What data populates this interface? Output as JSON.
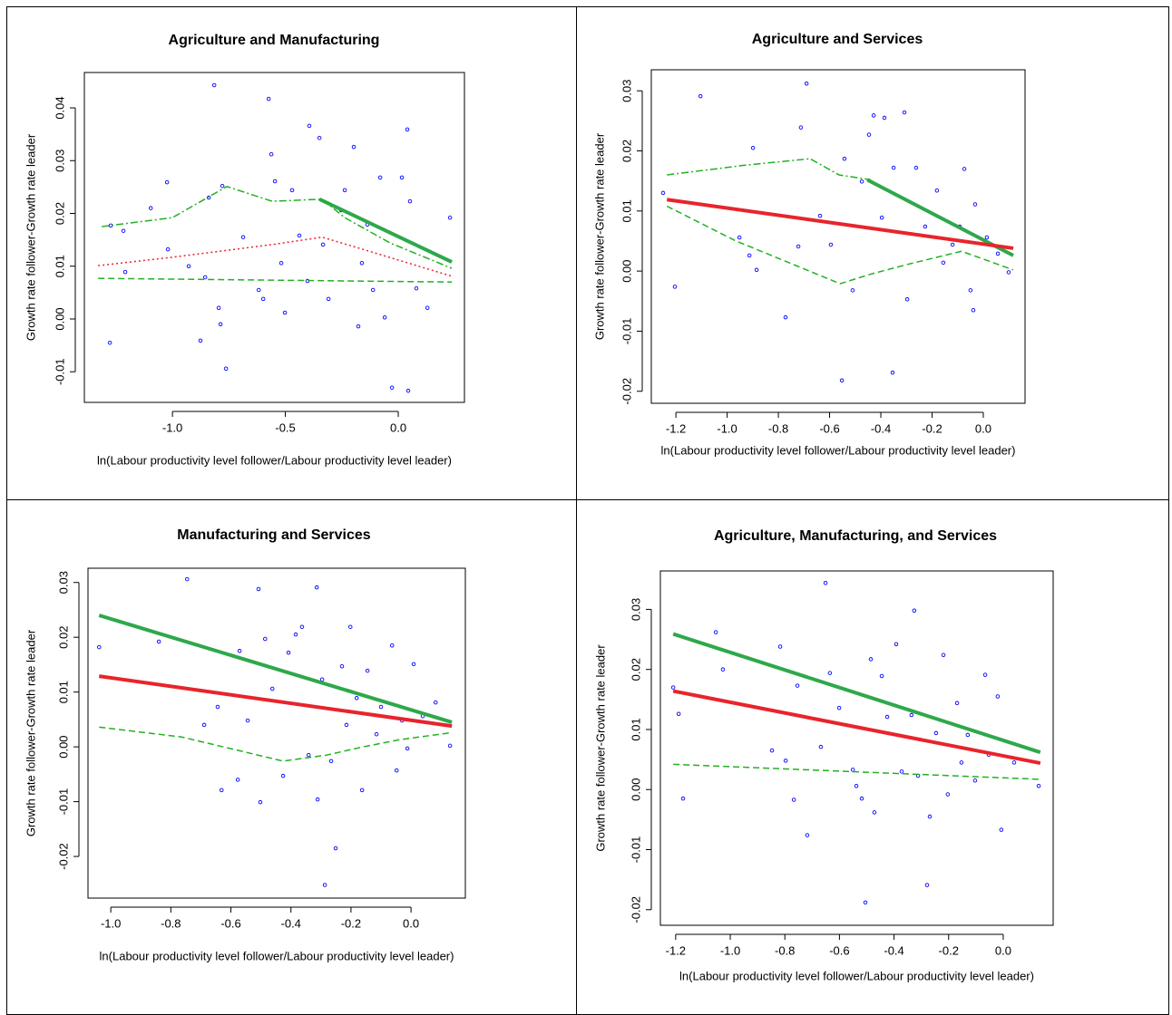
{
  "chart_data": [
    {
      "type": "scatter",
      "title": "Agriculture and Manufacturing",
      "x_label": "ln(Labour productivity level follower/Labour productivity level leader)",
      "y_label": "Growth rate follower-Growth rate leader",
      "xlim": [
        -1.39,
        0.293
      ],
      "ylim": [
        -0.0158,
        0.0467
      ],
      "xticks": [
        {
          "value": -1.0,
          "label": "-1.0"
        },
        -0.5,
        {
          "value": 0.0,
          "label": "0.0"
        }
      ],
      "yticks": [
        -0.01,
        {
          "value": 0.0,
          "label": "0.00"
        },
        0.01,
        0.02,
        0.03,
        0.04
      ],
      "series": [
        {
          "color": "#0000ff",
          "style": "points",
          "x": [
            -1.277,
            -1.273,
            -1.217,
            -1.209,
            -1.024,
            -1.096,
            -1.02,
            -0.928,
            -0.876,
            -0.855,
            -0.839,
            -0.815,
            -0.779,
            -0.795,
            -0.787,
            -0.763,
            -0.687,
            -0.618,
            -0.598,
            -0.574,
            -0.562,
            -0.546,
            -0.518,
            -0.502,
            -0.47,
            -0.438,
            -0.402,
            -0.394,
            -0.349,
            -0.333,
            -0.309,
            -0.253,
            -0.237,
            -0.197,
            -0.177,
            -0.161,
            -0.137,
            -0.112,
            -0.08,
            -0.06,
            -0.028,
            0.016,
            0.04,
            0.044,
            0.052,
            0.08,
            0.129,
            0.229
          ],
          "values": [
            -0.0045,
            0.0177,
            0.0167,
            0.0089,
            0.0259,
            0.021,
            0.0132,
            0.01,
            -0.0041,
            0.0079,
            0.023,
            0.0443,
            0.0252,
            0.0021,
            -0.001,
            -0.0094,
            0.0155,
            0.0055,
            0.0038,
            0.0417,
            0.0312,
            0.0261,
            0.0106,
            0.0012,
            0.0244,
            0.0158,
            0.0072,
            0.0366,
            0.0343,
            0.0141,
            0.0038,
            0.0206,
            0.0244,
            0.0326,
            -0.0014,
            0.0106,
            0.0179,
            0.0055,
            0.0268,
            0.0003,
            -0.013,
            0.0268,
            0.0359,
            -0.0136,
            0.0223,
            0.0058,
            0.0021,
            0.0192
          ]
        },
        {
          "color": "#2ea84b",
          "style": "solid",
          "width": 4,
          "x": [
            -0.349,
            0.237
          ],
          "values": [
            0.0227,
            0.0108
          ]
        },
        {
          "color": "#22b022",
          "style": "dotdash",
          "width": 1.5,
          "x": [
            -1.313,
            -1.0,
            -0.759,
            -0.558,
            -0.337,
            -0.237,
            -0.036,
            0.237
          ],
          "values": [
            0.0175,
            0.0192,
            0.0251,
            0.0223,
            0.0227,
            0.0192,
            0.0144,
            0.0096
          ]
        },
        {
          "color": "#e8242b",
          "style": "dotted",
          "width": 1.5,
          "x": [
            -1.329,
            -1.0,
            -0.558,
            -0.337,
            -0.157,
            0.044,
            0.237
          ],
          "values": [
            0.0101,
            0.0117,
            0.0141,
            0.0155,
            0.0132,
            0.0106,
            0.0081
          ]
        },
        {
          "color": "#22b022",
          "style": "dashed",
          "width": 1.5,
          "x": [
            -1.329,
            0.237
          ],
          "values": [
            0.0077,
            0.007
          ]
        }
      ]
    },
    {
      "type": "scatter",
      "title": "Agriculture and Services",
      "x_label": "ln(Labour productivity level follower/Labour productivity level leader)",
      "y_label": "Growth rate follower-Growth rate leader",
      "xlim": [
        -1.296,
        0.163
      ],
      "ylim": [
        -0.022,
        0.0335
      ],
      "xticks": [
        -1.2,
        {
          "value": -1.0,
          "label": "-1.0"
        },
        -0.8,
        -0.6,
        -0.4,
        -0.2,
        {
          "value": 0.0,
          "label": "0.0"
        }
      ],
      "yticks": [
        -0.02,
        -0.01,
        {
          "value": 0.0,
          "label": "0.00"
        },
        0.01,
        0.02,
        0.03
      ],
      "series": [
        {
          "color": "#0000ff",
          "style": "points",
          "x": [
            -1.25,
            -1.204,
            -1.104,
            -0.899,
            -0.952,
            -0.913,
            -0.885,
            -0.772,
            -0.722,
            -0.69,
            -0.712,
            -0.637,
            -0.595,
            -0.552,
            -0.542,
            -0.51,
            -0.474,
            -0.446,
            -0.428,
            -0.386,
            -0.396,
            -0.354,
            -0.35,
            -0.308,
            -0.297,
            -0.262,
            -0.227,
            -0.181,
            -0.156,
            -0.12,
            -0.092,
            -0.074,
            -0.05,
            -0.039,
            -0.032,
            0.014,
            0.057,
            0.099
          ],
          "values": [
            0.013,
            -0.0026,
            0.0291,
            0.0205,
            0.0056,
            0.0026,
            0.0002,
            -0.0077,
            0.0041,
            0.0312,
            0.0239,
            0.0092,
            0.0044,
            -0.0182,
            0.0187,
            -0.0032,
            0.0149,
            0.0227,
            0.0259,
            0.0255,
            0.0089,
            -0.0169,
            0.0172,
            0.0264,
            -0.0047,
            0.0172,
            0.0074,
            0.0134,
            0.0014,
            0.0044,
            0.0074,
            0.017,
            -0.0032,
            -0.0065,
            0.0111,
            0.0056,
            0.0029,
            -0.0002
          ]
        },
        {
          "color": "#2ea84b",
          "style": "solid",
          "width": 4,
          "x": [
            -0.453,
            0.117
          ],
          "values": [
            0.0152,
            0.0026
          ]
        },
        {
          "color": "#e8242b",
          "style": "solid",
          "width": 4,
          "x": [
            -1.235,
            0.117
          ],
          "values": [
            0.0119,
            0.0038
          ]
        },
        {
          "color": "#22b022",
          "style": "dotdash",
          "width": 1.5,
          "x": [
            -1.235,
            -0.935,
            -0.676,
            -0.563,
            -0.439
          ],
          "values": [
            0.016,
            0.0176,
            0.0187,
            0.016,
            0.0152
          ]
        },
        {
          "color": "#22b022",
          "style": "dashed",
          "width": 1.5,
          "x": [
            -1.235,
            -0.97,
            -0.559,
            -0.439,
            -0.297,
            -0.085,
            0.117
          ],
          "values": [
            0.0108,
            0.0051,
            -0.0021,
            -0.0005,
            0.0011,
            0.0033,
            0.0002
          ]
        }
      ]
    },
    {
      "type": "scatter",
      "title": "Manufacturing and Services",
      "x_label": "ln(Labour productivity level follower/Labour productivity level leader)",
      "y_label": "Growth rate follower-Growth rate leader",
      "xlim": [
        -1.076,
        0.181
      ],
      "ylim": [
        -0.0276,
        0.0326
      ],
      "xticks": [
        {
          "value": -1.0,
          "label": "-1.0"
        },
        -0.8,
        -0.6,
        -0.4,
        -0.2,
        {
          "value": 0.0,
          "label": "0.0"
        }
      ],
      "yticks": [
        -0.02,
        -0.01,
        {
          "value": 0.0,
          "label": "0.00"
        },
        0.01,
        0.02,
        0.03
      ],
      "series": [
        {
          "color": "#0000ff",
          "style": "points",
          "x": [
            -1.039,
            -0.746,
            -0.84,
            -0.689,
            -0.644,
            -0.631,
            -0.577,
            -0.571,
            -0.544,
            -0.508,
            -0.502,
            -0.486,
            -0.462,
            -0.426,
            -0.408,
            -0.384,
            -0.363,
            -0.341,
            -0.314,
            -0.311,
            -0.296,
            -0.287,
            -0.266,
            -0.251,
            -0.23,
            -0.215,
            -0.202,
            -0.181,
            -0.163,
            -0.145,
            -0.115,
            -0.1,
            -0.063,
            -0.048,
            -0.03,
            -0.012,
            0.009,
            0.039,
            0.082,
            0.13
          ],
          "values": [
            0.0182,
            0.0306,
            0.0192,
            0.004,
            0.0073,
            -0.0079,
            -0.006,
            0.0175,
            0.0048,
            0.0288,
            -0.0101,
            0.0197,
            0.0106,
            -0.0053,
            0.0172,
            0.0205,
            0.0219,
            -0.0015,
            0.0291,
            -0.0096,
            0.0123,
            -0.0252,
            -0.0026,
            -0.0185,
            0.0147,
            0.004,
            0.0219,
            0.0089,
            -0.0079,
            0.0139,
            0.0023,
            0.0073,
            0.0185,
            -0.0043,
            0.0048,
            -0.0003,
            0.0151,
            0.0056,
            0.0081,
            0.0002
          ]
        },
        {
          "color": "#2ea84b",
          "style": "solid",
          "width": 4,
          "x": [
            -1.039,
            0.136
          ],
          "values": [
            0.024,
            0.0045
          ]
        },
        {
          "color": "#e8242b",
          "style": "solid",
          "width": 4,
          "x": [
            -1.039,
            0.136
          ],
          "values": [
            0.0129,
            0.0038
          ]
        },
        {
          "color": "#22b022",
          "style": "dashed",
          "width": 1.5,
          "x": [
            -1.039,
            -0.764,
            -0.426,
            -0.281,
            -0.16,
            -0.039,
            0.136
          ],
          "values": [
            0.0036,
            0.0018,
            -0.0026,
            -0.0015,
            0.0,
            0.0013,
            0.0026
          ]
        }
      ]
    },
    {
      "type": "scatter",
      "title": "Agriculture, Manufacturing, and Services",
      "x_label": "ln(Labour productivity level follower/Labour productivity level leader)",
      "y_label": "Growth rate follower-Growth rate leader",
      "xlim": [
        -1.256,
        0.183
      ],
      "ylim": [
        -0.0226,
        0.0364
      ],
      "xticks": [
        -1.2,
        {
          "value": -1.0,
          "label": "-1.0"
        },
        -0.8,
        -0.6,
        -0.4,
        -0.2,
        {
          "value": 0.0,
          "label": "0.0"
        }
      ],
      "yticks": [
        -0.02,
        -0.01,
        {
          "value": 0.0,
          "label": "0.00"
        },
        0.01,
        0.02,
        0.03
      ],
      "series": [
        {
          "color": "#0000ff",
          "style": "points",
          "x": [
            -1.209,
            -1.189,
            -1.173,
            -1.053,
            -1.027,
            -0.847,
            -0.817,
            -0.797,
            -0.767,
            -0.754,
            -0.718,
            -0.668,
            -0.651,
            -0.635,
            -0.601,
            -0.551,
            -0.538,
            -0.518,
            -0.505,
            -0.485,
            -0.472,
            -0.445,
            -0.425,
            -0.392,
            -0.372,
            -0.336,
            -0.326,
            -0.312,
            -0.279,
            -0.269,
            -0.246,
            -0.219,
            -0.203,
            -0.169,
            -0.153,
            -0.13,
            -0.103,
            -0.066,
            -0.053,
            -0.02,
            -0.007,
            0.04,
            0.13
          ],
          "values": [
            0.017,
            0.0126,
            -0.0015,
            0.0262,
            0.02,
            0.0065,
            0.0238,
            0.0048,
            -0.0017,
            0.0173,
            -0.0076,
            0.0071,
            0.0344,
            0.0194,
            0.0136,
            0.0033,
            0.0006,
            -0.0015,
            -0.0188,
            0.0217,
            -0.0038,
            0.0189,
            0.0121,
            0.0242,
            0.003,
            0.0124,
            0.0298,
            0.0023,
            -0.0159,
            -0.0045,
            0.0094,
            0.0224,
            -0.0008,
            0.0144,
            0.0045,
            0.0091,
            0.0015,
            0.0191,
            0.0058,
            0.0155,
            -0.0067,
            0.0045,
            0.0006
          ]
        },
        {
          "color": "#2ea84b",
          "style": "solid",
          "width": 4,
          "x": [
            -1.209,
            0.136
          ],
          "values": [
            0.0259,
            0.0062
          ]
        },
        {
          "color": "#e8242b",
          "style": "solid",
          "width": 4,
          "x": [
            -1.209,
            0.136
          ],
          "values": [
            0.0164,
            0.0044
          ]
        },
        {
          "color": "#22b022",
          "style": "dashed",
          "width": 1.5,
          "x": [
            -1.209,
            0.136
          ],
          "values": [
            0.0042,
            0.0017
          ]
        }
      ]
    }
  ]
}
